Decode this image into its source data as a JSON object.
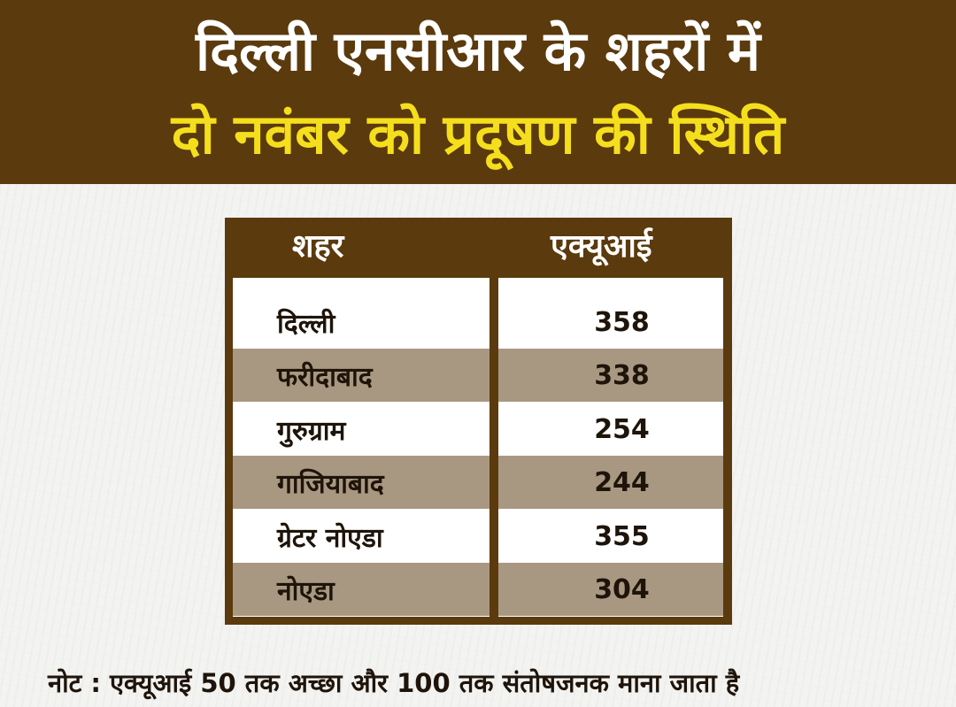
{
  "header": {
    "title_line1": "दिल्ली एनसीआर के शहरों में",
    "title_line2": "दो नवंबर को प्रदूषण की स्थिति"
  },
  "table": {
    "columns": [
      "शहर",
      "एक्यूआई"
    ],
    "rows": [
      {
        "city": "दिल्ली",
        "aqi": "358"
      },
      {
        "city": "फरीदाबाद",
        "aqi": "338"
      },
      {
        "city": "गुरुग्राम",
        "aqi": "254"
      },
      {
        "city": "गाजियाबाद",
        "aqi": "244"
      },
      {
        "city": "ग्रेटर नोएडा",
        "aqi": "355"
      },
      {
        "city": "नोएडा",
        "aqi": "304"
      }
    ]
  },
  "note": "नोट : एक्यूआई 50 तक अच्छा और 100 तक संतोषजनक माना जाता है",
  "colors": {
    "brown": "#5b3a0d",
    "yellow": "#f5df1c",
    "stripe": "#a99881"
  }
}
